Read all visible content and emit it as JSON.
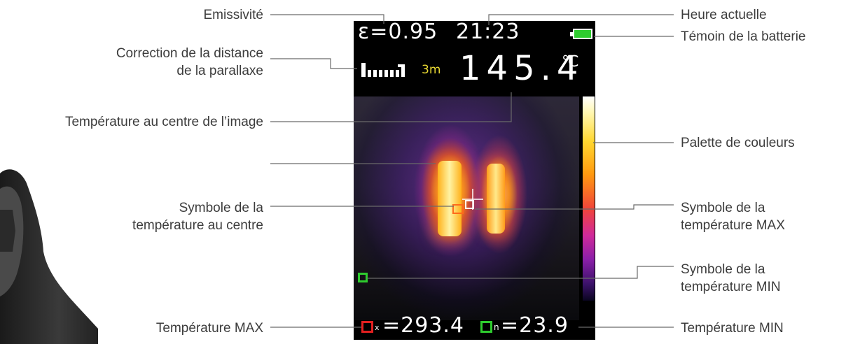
{
  "labels": {
    "emissivity": "Emissivité",
    "parallax_line1": "Correction de la distance",
    "parallax_line2": "de la parallaxe",
    "center_temp": "Température au centre de l’image",
    "center_symbol_line1": "Symbole de la",
    "center_symbol_line2": "température au centre",
    "max_temp": "Température MAX",
    "current_time": "Heure actuelle",
    "battery": "Témoin de la batterie",
    "palette": "Palette de couleurs",
    "max_symbol_line1": "Symbole de la",
    "max_symbol_line2": "température MAX",
    "min_symbol_line1": "Symbole de la",
    "min_symbol_line2": "température MIN",
    "min_temp": "Température MIN"
  },
  "display": {
    "emissivity": "ε=0.95",
    "time": "21:23",
    "distance": "3m",
    "center_temp": "145.4",
    "unit": "℃",
    "max_suffix": "x",
    "max_value": "=293.4",
    "min_suffix": "n",
    "min_value": "=23.9"
  },
  "colors": {
    "max_marker": "#e32020",
    "min_marker": "#2ecc2e",
    "battery": "#2ecc2e",
    "distance_text": "#e8d832"
  },
  "icons": {
    "battery": "battery-full-icon",
    "distance": "distance-bars-icon",
    "crosshair": "crosshair-icon"
  }
}
